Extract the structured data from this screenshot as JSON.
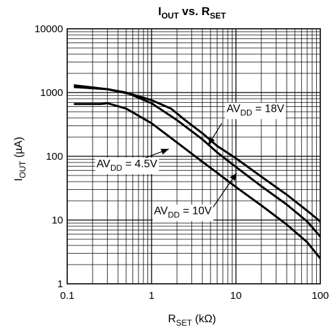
{
  "chart_data": {
    "type": "line",
    "title": {
      "main": "I",
      "main_sub": "OUT",
      "mid": " vs. R",
      "mid_sub": "SET"
    },
    "xlabel": {
      "main": "R",
      "sub": "SET",
      "rest": " (kΩ)"
    },
    "ylabel": {
      "main": "I",
      "sub": "OUT",
      "rest": " (µA)"
    },
    "x_scale": "log",
    "y_scale": "log",
    "xlim": [
      0.1,
      100
    ],
    "ylim": [
      1,
      10000
    ],
    "x_ticks": [
      {
        "value": 0.1,
        "label": "0.1"
      },
      {
        "value": 1,
        "label": "1"
      },
      {
        "value": 10,
        "label": "10"
      },
      {
        "value": 100,
        "label": "100"
      }
    ],
    "y_ticks": [
      {
        "value": 1,
        "label": "1"
      },
      {
        "value": 10,
        "label": "10"
      },
      {
        "value": 100,
        "label": "100"
      },
      {
        "value": 1000,
        "label": "1000"
      },
      {
        "value": 10000,
        "label": "10000"
      }
    ],
    "grid": true,
    "series": [
      {
        "name": {
          "main": "AV",
          "sub": "DD",
          "rest": " = 18V"
        },
        "points": [
          [
            0.12,
            1300
          ],
          [
            0.3,
            1130
          ],
          [
            0.6,
            930
          ],
          [
            1,
            760
          ],
          [
            1.7,
            560
          ],
          [
            2.5,
            370
          ],
          [
            4,
            230
          ],
          [
            6,
            145
          ],
          [
            10,
            93
          ],
          [
            20,
            48
          ],
          [
            40,
            25
          ],
          [
            70,
            14
          ],
          [
            100,
            9.5
          ]
        ]
      },
      {
        "name": {
          "main": "AV",
          "sub": "DD",
          "rest": " = 10V"
        },
        "points": [
          [
            0.12,
            1220
          ],
          [
            0.3,
            1130
          ],
          [
            0.5,
            1000
          ],
          [
            1,
            680
          ],
          [
            2,
            370
          ],
          [
            4,
            185
          ],
          [
            6,
            115
          ],
          [
            10,
            68
          ],
          [
            20,
            34
          ],
          [
            40,
            17.5
          ],
          [
            70,
            9.5
          ],
          [
            100,
            5.5
          ]
        ]
      },
      {
        "name": {
          "main": "AV",
          "sub": "DD",
          "rest": " = 4.5V"
        },
        "points": [
          [
            0.12,
            660
          ],
          [
            0.25,
            660
          ],
          [
            0.3,
            680
          ],
          [
            0.5,
            560
          ],
          [
            1,
            330
          ],
          [
            2,
            165
          ],
          [
            4,
            82
          ],
          [
            6,
            55
          ],
          [
            10,
            33
          ],
          [
            20,
            17
          ],
          [
            40,
            8.5
          ],
          [
            70,
            4.5
          ],
          [
            100,
            2.5
          ]
        ]
      }
    ],
    "annotations": [
      {
        "series": 0,
        "text": {
          "main": "AV",
          "sub": "DD",
          "rest": " = 18V"
        },
        "label_at": [
          17,
          570
        ],
        "arrow_from": [
          6.8,
          330
        ],
        "arrow_to": [
          4.7,
          150
        ]
      },
      {
        "series": 2,
        "text": {
          "main": "AV",
          "sub": "DD",
          "rest": " = 4.5V"
        },
        "label_at": [
          0.51,
          78
        ],
        "arrow_from": [
          0.6,
          80
        ],
        "arrow_to": [
          1.6,
          130
        ]
      },
      {
        "series": 1,
        "text": {
          "main": "AV",
          "sub": "DD",
          "rest": " = 10V"
        },
        "label_at": [
          2.35,
          14.3
        ],
        "arrow_from": [
          5.2,
          15
        ],
        "arrow_to": [
          10.2,
          55
        ]
      }
    ],
    "colors": {
      "line": "#000000",
      "grid": "#000000",
      "background": "#ffffff"
    }
  }
}
